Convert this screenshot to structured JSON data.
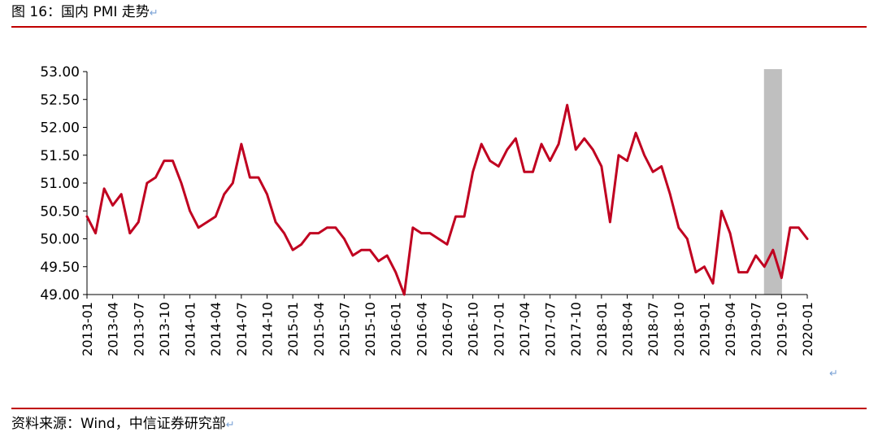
{
  "figure": {
    "title": "图 16：国内 PMI 走势",
    "source": "资料来源：Wind，中信证券研究部",
    "return_mark": "↵"
  },
  "chart_data": {
    "type": "line",
    "title": "",
    "xlabel": "",
    "ylabel": "",
    "ylim": [
      49.0,
      53.0
    ],
    "yticks": [
      "53.00",
      "52.50",
      "52.00",
      "51.50",
      "51.00",
      "50.50",
      "50.00",
      "49.50",
      "49.00"
    ],
    "ytick_values": [
      53.0,
      52.5,
      52.0,
      51.5,
      51.0,
      50.5,
      50.0,
      49.5,
      49.0
    ],
    "xtick_labels": [
      "2013-01",
      "2013-04",
      "2013-07",
      "2013-10",
      "2014-01",
      "2014-04",
      "2014-07",
      "2014-10",
      "2015-01",
      "2015-04",
      "2015-07",
      "2015-10",
      "2016-01",
      "2016-04",
      "2016-07",
      "2016-10",
      "2017-01",
      "2017-04",
      "2017-07",
      "2017-10",
      "2018-01",
      "2018-04",
      "2018-07",
      "2018-10",
      "2019-01",
      "2019-04",
      "2019-07",
      "2019-10",
      "2020-01"
    ],
    "x_start": "2013-01",
    "highlight": {
      "from": "2019-08",
      "to": "2019-10",
      "color": "#bfbfbf"
    },
    "series": [
      {
        "name": "",
        "color": "#c00020",
        "values": [
          50.4,
          50.1,
          50.9,
          50.6,
          50.8,
          50.1,
          50.3,
          51.0,
          51.1,
          51.4,
          51.4,
          51.0,
          50.5,
          50.2,
          50.3,
          50.4,
          50.8,
          51.0,
          51.7,
          51.1,
          51.1,
          50.8,
          50.3,
          50.1,
          49.8,
          49.9,
          50.1,
          50.1,
          50.2,
          50.2,
          50.0,
          49.7,
          49.8,
          49.8,
          49.6,
          49.7,
          49.4,
          49.0,
          50.2,
          50.1,
          50.1,
          50.0,
          49.9,
          50.4,
          50.4,
          51.2,
          51.7,
          51.4,
          51.3,
          51.6,
          51.8,
          51.2,
          51.2,
          51.7,
          51.4,
          51.7,
          52.4,
          51.6,
          51.8,
          51.6,
          51.3,
          50.3,
          51.5,
          51.4,
          51.9,
          51.5,
          51.2,
          51.3,
          50.8,
          50.2,
          50.0,
          49.4,
          49.5,
          49.2,
          50.5,
          50.1,
          49.4,
          49.4,
          49.7,
          49.5,
          49.8,
          49.3,
          50.2,
          50.2,
          50.0
        ]
      }
    ]
  }
}
